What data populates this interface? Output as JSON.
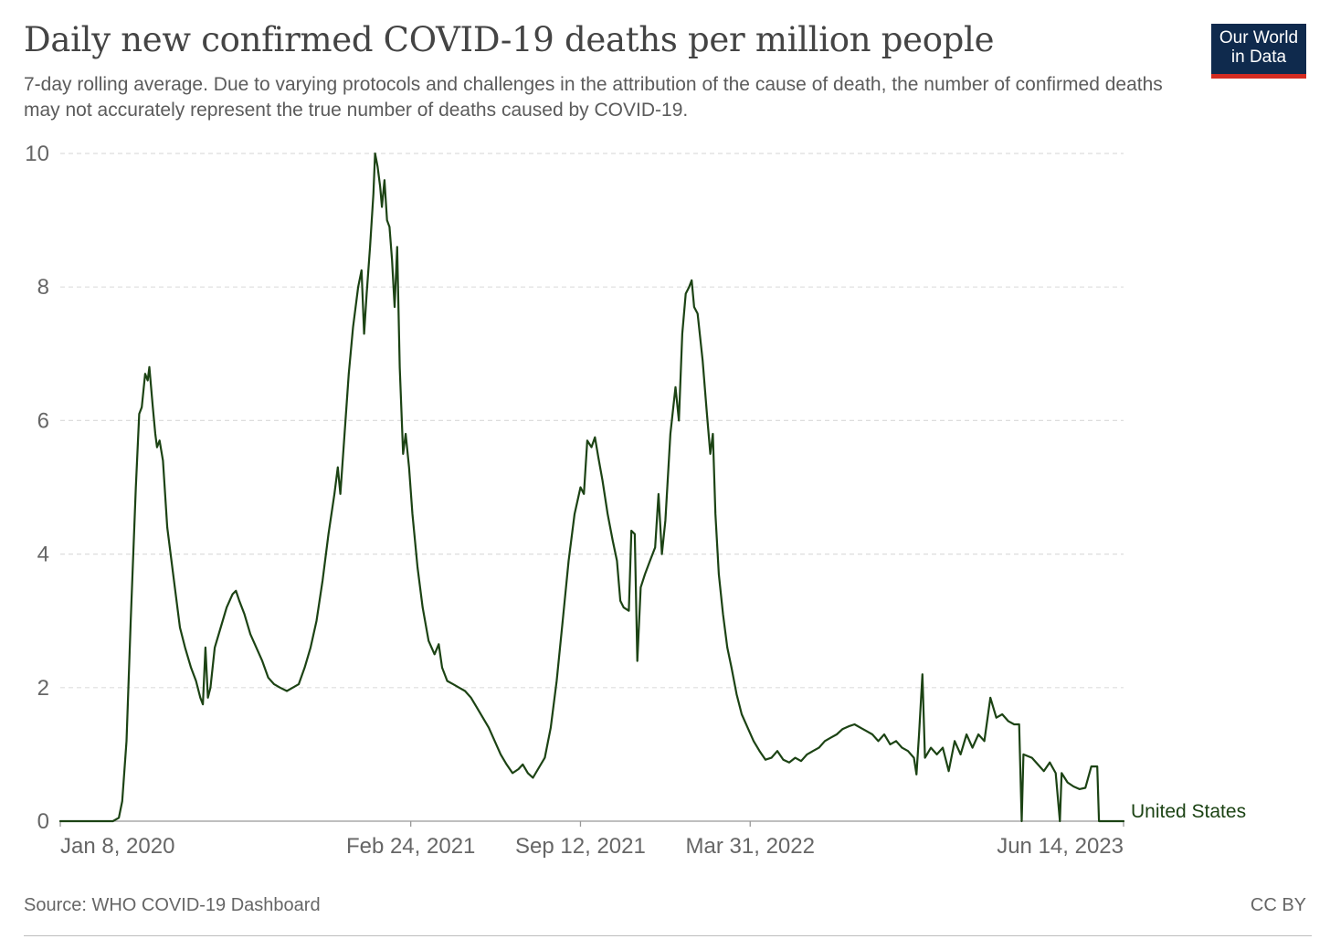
{
  "header": {
    "title": "Daily new confirmed COVID-19 deaths per million people",
    "subtitle": "7-day rolling average. Due to varying protocols and challenges in the attribution of the cause of death, the number of confirmed deaths may not accurately represent the true number of deaths caused by COVID-19.",
    "logo_line1": "Our World",
    "logo_line2": "in Data"
  },
  "footer": {
    "source": "Source: WHO COVID-19 Dashboard",
    "license": "CC BY"
  },
  "colors": {
    "series": "#1c4314",
    "grid": "#dddddd",
    "axis": "#999999",
    "logo_bg": "#0f2a4d",
    "logo_accent": "#d42b21"
  },
  "chart_data": {
    "type": "line",
    "title": "Daily new confirmed COVID-19 deaths per million people",
    "xlabel": "",
    "ylabel": "",
    "ylim": [
      0,
      10
    ],
    "xlim": [
      "2020-01-08",
      "2023-06-14"
    ],
    "y_ticks": [
      0,
      2,
      4,
      6,
      8,
      10
    ],
    "y_tick_labels": [
      "0",
      "2",
      "4",
      "6",
      "8",
      "10"
    ],
    "x_ticks": [
      "2020-01-08",
      "2021-02-24",
      "2021-09-12",
      "2022-03-31",
      "2023-06-14"
    ],
    "x_tick_labels": [
      "Jan 8, 2020",
      "Feb 24, 2021",
      "Sep 12, 2021",
      "Mar 31, 2022",
      "Jun 14, 2023"
    ],
    "grid": "horizontal dashed",
    "legend": "inline label at end of line",
    "series": [
      {
        "name": "United States",
        "points": [
          [
            "2020-01-08",
            0
          ],
          [
            "2020-03-10",
            0
          ],
          [
            "2020-03-17",
            0.05
          ],
          [
            "2020-03-21",
            0.3
          ],
          [
            "2020-03-26",
            1.2
          ],
          [
            "2020-03-31",
            3.0
          ],
          [
            "2020-04-06",
            5.0
          ],
          [
            "2020-04-10",
            6.1
          ],
          [
            "2020-04-13",
            6.2
          ],
          [
            "2020-04-17",
            6.7
          ],
          [
            "2020-04-20",
            6.6
          ],
          [
            "2020-04-22",
            6.8
          ],
          [
            "2020-04-26",
            6.2
          ],
          [
            "2020-04-29",
            5.8
          ],
          [
            "2020-05-01",
            5.6
          ],
          [
            "2020-05-04",
            5.7
          ],
          [
            "2020-05-08",
            5.4
          ],
          [
            "2020-05-13",
            4.4
          ],
          [
            "2020-05-18",
            3.9
          ],
          [
            "2020-05-22",
            3.5
          ],
          [
            "2020-05-28",
            2.9
          ],
          [
            "2020-06-03",
            2.6
          ],
          [
            "2020-06-10",
            2.3
          ],
          [
            "2020-06-16",
            2.1
          ],
          [
            "2020-06-21",
            1.85
          ],
          [
            "2020-06-24",
            1.75
          ],
          [
            "2020-06-27",
            2.6
          ],
          [
            "2020-06-30",
            1.85
          ],
          [
            "2020-07-03",
            2.0
          ],
          [
            "2020-07-08",
            2.6
          ],
          [
            "2020-07-15",
            2.9
          ],
          [
            "2020-07-22",
            3.2
          ],
          [
            "2020-07-29",
            3.4
          ],
          [
            "2020-08-02",
            3.45
          ],
          [
            "2020-08-06",
            3.3
          ],
          [
            "2020-08-12",
            3.1
          ],
          [
            "2020-08-19",
            2.8
          ],
          [
            "2020-08-26",
            2.6
          ],
          [
            "2020-09-02",
            2.4
          ],
          [
            "2020-09-09",
            2.15
          ],
          [
            "2020-09-16",
            2.05
          ],
          [
            "2020-09-23",
            2.0
          ],
          [
            "2020-10-01",
            1.95
          ],
          [
            "2020-10-08",
            2.0
          ],
          [
            "2020-10-15",
            2.05
          ],
          [
            "2020-10-22",
            2.3
          ],
          [
            "2020-10-29",
            2.6
          ],
          [
            "2020-11-05",
            3.0
          ],
          [
            "2020-11-12",
            3.6
          ],
          [
            "2020-11-19",
            4.3
          ],
          [
            "2020-11-26",
            4.9
          ],
          [
            "2020-11-30",
            5.3
          ],
          [
            "2020-12-03",
            4.9
          ],
          [
            "2020-12-08",
            5.8
          ],
          [
            "2020-12-13",
            6.7
          ],
          [
            "2020-12-18",
            7.4
          ],
          [
            "2020-12-24",
            8.0
          ],
          [
            "2020-12-28",
            8.25
          ],
          [
            "2020-12-31",
            7.3
          ],
          [
            "2021-01-03",
            7.9
          ],
          [
            "2021-01-07",
            8.6
          ],
          [
            "2021-01-11",
            9.4
          ],
          [
            "2021-01-13",
            10.0
          ],
          [
            "2021-01-16",
            9.8
          ],
          [
            "2021-01-19",
            9.5
          ],
          [
            "2021-01-21",
            9.2
          ],
          [
            "2021-01-24",
            9.6
          ],
          [
            "2021-01-27",
            9.0
          ],
          [
            "2021-01-30",
            8.9
          ],
          [
            "2021-02-02",
            8.4
          ],
          [
            "2021-02-05",
            7.7
          ],
          [
            "2021-02-08",
            8.6
          ],
          [
            "2021-02-11",
            6.8
          ],
          [
            "2021-02-15",
            5.5
          ],
          [
            "2021-02-18",
            5.8
          ],
          [
            "2021-02-22",
            5.3
          ],
          [
            "2021-02-26",
            4.6
          ],
          [
            "2021-03-04",
            3.8
          ],
          [
            "2021-03-10",
            3.2
          ],
          [
            "2021-03-17",
            2.7
          ],
          [
            "2021-03-24",
            2.5
          ],
          [
            "2021-03-29",
            2.65
          ],
          [
            "2021-04-02",
            2.3
          ],
          [
            "2021-04-08",
            2.1
          ],
          [
            "2021-04-15",
            2.05
          ],
          [
            "2021-04-22",
            2.0
          ],
          [
            "2021-04-29",
            1.95
          ],
          [
            "2021-05-06",
            1.85
          ],
          [
            "2021-05-13",
            1.7
          ],
          [
            "2021-05-20",
            1.55
          ],
          [
            "2021-05-27",
            1.4
          ],
          [
            "2021-06-03",
            1.2
          ],
          [
            "2021-06-10",
            1.0
          ],
          [
            "2021-06-17",
            0.85
          ],
          [
            "2021-06-24",
            0.72
          ],
          [
            "2021-07-01",
            0.78
          ],
          [
            "2021-07-06",
            0.85
          ],
          [
            "2021-07-12",
            0.72
          ],
          [
            "2021-07-18",
            0.65
          ],
          [
            "2021-07-25",
            0.8
          ],
          [
            "2021-08-01",
            0.95
          ],
          [
            "2021-08-08",
            1.4
          ],
          [
            "2021-08-15",
            2.1
          ],
          [
            "2021-08-22",
            3.0
          ],
          [
            "2021-08-29",
            3.9
          ],
          [
            "2021-09-05",
            4.6
          ],
          [
            "2021-09-12",
            5.0
          ],
          [
            "2021-09-16",
            4.9
          ],
          [
            "2021-09-20",
            5.7
          ],
          [
            "2021-09-25",
            5.6
          ],
          [
            "2021-09-29",
            5.75
          ],
          [
            "2021-10-03",
            5.45
          ],
          [
            "2021-10-08",
            5.1
          ],
          [
            "2021-10-14",
            4.6
          ],
          [
            "2021-10-20",
            4.2
          ],
          [
            "2021-10-25",
            3.9
          ],
          [
            "2021-10-29",
            3.3
          ],
          [
            "2021-11-02",
            3.2
          ],
          [
            "2021-11-08",
            3.15
          ],
          [
            "2021-11-11",
            4.35
          ],
          [
            "2021-11-15",
            4.3
          ],
          [
            "2021-11-18",
            2.4
          ],
          [
            "2021-11-22",
            3.5
          ],
          [
            "2021-11-27",
            3.7
          ],
          [
            "2021-12-03",
            3.9
          ],
          [
            "2021-12-09",
            4.1
          ],
          [
            "2021-12-13",
            4.9
          ],
          [
            "2021-12-17",
            4.0
          ],
          [
            "2021-12-21",
            4.5
          ],
          [
            "2021-12-27",
            5.8
          ],
          [
            "2022-01-02",
            6.5
          ],
          [
            "2022-01-06",
            6.0
          ],
          [
            "2022-01-10",
            7.3
          ],
          [
            "2022-01-14",
            7.9
          ],
          [
            "2022-01-18",
            8.0
          ],
          [
            "2022-01-21",
            8.1
          ],
          [
            "2022-01-24",
            7.7
          ],
          [
            "2022-01-28",
            7.6
          ],
          [
            "2022-02-03",
            6.9
          ],
          [
            "2022-02-08",
            6.1
          ],
          [
            "2022-02-12",
            5.5
          ],
          [
            "2022-02-15",
            5.8
          ],
          [
            "2022-02-18",
            4.6
          ],
          [
            "2022-02-22",
            3.7
          ],
          [
            "2022-02-27",
            3.1
          ],
          [
            "2022-03-04",
            2.6
          ],
          [
            "2022-03-09",
            2.3
          ],
          [
            "2022-03-15",
            1.9
          ],
          [
            "2022-03-21",
            1.6
          ],
          [
            "2022-03-28",
            1.4
          ],
          [
            "2022-04-04",
            1.2
          ],
          [
            "2022-04-11",
            1.05
          ],
          [
            "2022-04-18",
            0.92
          ],
          [
            "2022-04-25",
            0.95
          ],
          [
            "2022-05-02",
            1.05
          ],
          [
            "2022-05-09",
            0.92
          ],
          [
            "2022-05-16",
            0.88
          ],
          [
            "2022-05-23",
            0.95
          ],
          [
            "2022-05-30",
            0.9
          ],
          [
            "2022-06-06",
            1.0
          ],
          [
            "2022-06-13",
            1.05
          ],
          [
            "2022-06-20",
            1.1
          ],
          [
            "2022-06-27",
            1.2
          ],
          [
            "2022-07-04",
            1.25
          ],
          [
            "2022-07-11",
            1.3
          ],
          [
            "2022-07-18",
            1.38
          ],
          [
            "2022-07-25",
            1.42
          ],
          [
            "2022-08-01",
            1.45
          ],
          [
            "2022-08-08",
            1.4
          ],
          [
            "2022-08-15",
            1.35
          ],
          [
            "2022-08-22",
            1.3
          ],
          [
            "2022-08-29",
            1.2
          ],
          [
            "2022-09-05",
            1.3
          ],
          [
            "2022-09-12",
            1.15
          ],
          [
            "2022-09-19",
            1.2
          ],
          [
            "2022-09-26",
            1.1
          ],
          [
            "2022-10-03",
            1.05
          ],
          [
            "2022-10-10",
            0.95
          ],
          [
            "2022-10-13",
            0.7
          ],
          [
            "2022-10-16",
            1.3
          ],
          [
            "2022-10-20",
            2.2
          ],
          [
            "2022-10-23",
            0.95
          ],
          [
            "2022-10-30",
            1.1
          ],
          [
            "2022-11-06",
            1.0
          ],
          [
            "2022-11-13",
            1.1
          ],
          [
            "2022-11-20",
            0.75
          ],
          [
            "2022-11-27",
            1.2
          ],
          [
            "2022-12-04",
            1.0
          ],
          [
            "2022-12-11",
            1.3
          ],
          [
            "2022-12-18",
            1.1
          ],
          [
            "2022-12-25",
            1.3
          ],
          [
            "2023-01-01",
            1.2
          ],
          [
            "2023-01-08",
            1.85
          ],
          [
            "2023-01-15",
            1.55
          ],
          [
            "2023-01-22",
            1.6
          ],
          [
            "2023-01-29",
            1.5
          ],
          [
            "2023-02-05",
            1.45
          ],
          [
            "2023-02-11",
            1.45
          ],
          [
            "2023-02-14",
            0
          ],
          [
            "2023-02-16",
            1.0
          ],
          [
            "2023-02-26",
            0.95
          ],
          [
            "2023-03-05",
            0.85
          ],
          [
            "2023-03-12",
            0.75
          ],
          [
            "2023-03-19",
            0.88
          ],
          [
            "2023-03-26",
            0.72
          ],
          [
            "2023-03-31",
            0
          ],
          [
            "2023-04-02",
            0.72
          ],
          [
            "2023-04-09",
            0.58
          ],
          [
            "2023-04-16",
            0.52
          ],
          [
            "2023-04-23",
            0.48
          ],
          [
            "2023-04-30",
            0.5
          ],
          [
            "2023-05-07",
            0.82
          ],
          [
            "2023-05-14",
            0.82
          ],
          [
            "2023-05-16",
            0
          ],
          [
            "2023-06-14",
            0
          ]
        ]
      }
    ]
  }
}
